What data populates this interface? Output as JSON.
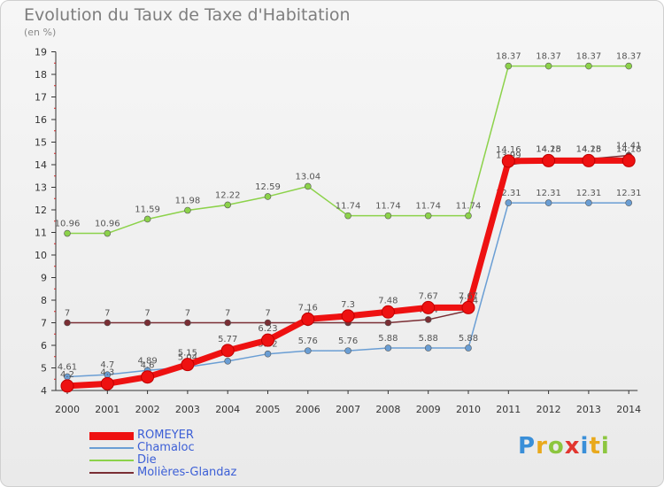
{
  "title": "Evolution du Taux de Taxe d'Habitation",
  "subtitle": "(en %)",
  "logo": "Proxiti",
  "chart_data": {
    "type": "line",
    "categories": [
      "2000",
      "2001",
      "2002",
      "2003",
      "2004",
      "2005",
      "2006",
      "2007",
      "2008",
      "2009",
      "2010",
      "2011",
      "2012",
      "2013",
      "2014"
    ],
    "ylim": [
      4,
      19
    ],
    "yticks": [
      4,
      5,
      6,
      7,
      8,
      9,
      10,
      11,
      12,
      13,
      14,
      15,
      16,
      17,
      18,
      19
    ],
    "grid": false,
    "legend": "bottom-left",
    "series": [
      {
        "name": "Die",
        "color": "#8cd24a",
        "values": [
          10.96,
          10.96,
          11.59,
          11.98,
          12.22,
          12.59,
          13.04,
          11.74,
          11.74,
          11.74,
          11.74,
          18.37,
          18.37,
          18.37,
          18.37
        ]
      },
      {
        "name": "Molières-Glandaz",
        "color": "#7a2e34",
        "values": [
          7,
          7,
          7,
          7,
          7,
          7,
          7,
          7,
          7,
          7.14,
          7.54,
          13.99,
          14.25,
          14.25,
          14.41
        ]
      },
      {
        "name": "Chamaloc",
        "color": "#6a9ed4",
        "values": [
          4.61,
          4.7,
          4.89,
          5.04,
          5.3,
          5.62,
          5.76,
          5.76,
          5.88,
          5.88,
          5.88,
          12.31,
          12.31,
          12.31,
          12.31
        ]
      },
      {
        "name": "ROMEYER",
        "color": "#ee1111",
        "values": [
          4.2,
          4.3,
          4.6,
          5.15,
          5.77,
          6.23,
          7.16,
          7.3,
          7.48,
          7.67,
          7.67,
          14.16,
          14.18,
          14.18,
          14.18
        ]
      }
    ]
  }
}
